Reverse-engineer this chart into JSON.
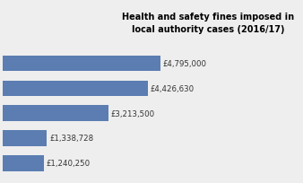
{
  "values": [
    1240250,
    1338728,
    3213500,
    4426630,
    4795000
  ],
  "labels": [
    "£1,240,250",
    "£1,338,728",
    "£3,213,500",
    "£4,426,630",
    "£4,795,000"
  ],
  "bar_color": "#5b7db1",
  "title_line1": "Health and safety fines imposed in",
  "title_line2": "local authority cases (2016/17)",
  "background_color": "#eeeeee",
  "xlim": [
    0,
    6200000
  ],
  "title_fontsize": 7.0,
  "label_fontsize": 6.2,
  "bar_height": 0.62
}
